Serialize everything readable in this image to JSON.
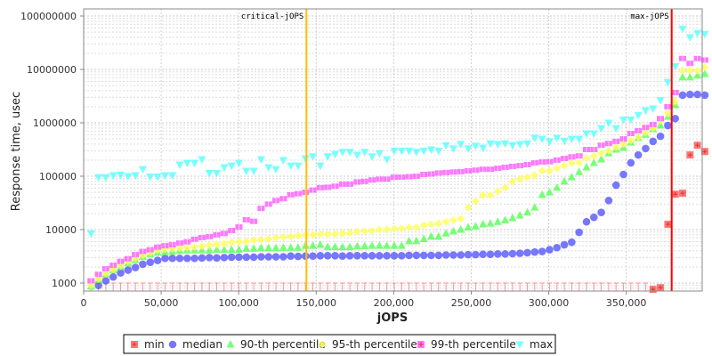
{
  "chart_data": {
    "type": "scatter",
    "title": "",
    "xlabel": "jOPS",
    "ylabel": "Response time, usec",
    "xlim": [
      0,
      399000
    ],
    "ylim": [
      708,
      136000000
    ],
    "yscale": "log",
    "grid": true,
    "legend_position": "bottom",
    "x_ticks": [
      0,
      50000,
      100000,
      150000,
      200000,
      250000,
      300000,
      350000
    ],
    "x_tick_labels": [
      "0",
      "50,000",
      "100,000",
      "150,000",
      "200,000",
      "250,000",
      "300,000",
      "350,000"
    ],
    "y_ticks": [
      1000,
      10000,
      100000,
      1000000,
      10000000,
      100000000
    ],
    "y_tick_labels": [
      "1000",
      "10000",
      "100000",
      "1000000",
      "10000000",
      "100000000"
    ],
    "x_step": 4770,
    "x_count": 84,
    "annotations": [
      {
        "label": "critical-jOPS",
        "x": 143700,
        "color": "#ffc000"
      },
      {
        "label": "max-jOPS",
        "x": 379300,
        "color": "#ff0000"
      }
    ],
    "series": [
      {
        "name": "min",
        "color": "#ff5555",
        "shape": "square",
        "values": [
          null,
          500,
          500,
          500,
          500,
          500,
          500,
          500,
          500,
          500,
          500,
          500,
          500,
          500,
          500,
          500,
          500,
          500,
          500,
          500,
          500,
          500,
          500,
          500,
          500,
          500,
          500,
          500,
          500,
          500,
          500,
          500,
          500,
          500,
          500,
          500,
          500,
          500,
          500,
          500,
          500,
          500,
          500,
          500,
          500,
          500,
          500,
          500,
          500,
          500,
          500,
          500,
          500,
          500,
          500,
          500,
          500,
          500,
          500,
          500,
          500,
          500,
          500,
          500,
          500,
          500,
          500,
          500,
          500,
          500,
          500,
          500,
          500,
          500,
          500,
          500,
          760,
          820,
          12600,
          46000,
          48000,
          250000,
          380000,
          290000
        ]
      },
      {
        "name": "median",
        "color": "#5555ff",
        "shape": "circle",
        "values": [
          700,
          900,
          1100,
          1300,
          1550,
          1750,
          1950,
          2250,
          2450,
          2650,
          2900,
          2900,
          2900,
          2900,
          2900,
          2950,
          3000,
          2950,
          3000,
          3050,
          3050,
          3050,
          3050,
          3100,
          3100,
          3100,
          3100,
          3200,
          3150,
          3200,
          3200,
          3250,
          3250,
          3250,
          3200,
          3250,
          3250,
          3250,
          3250,
          3250,
          3250,
          3250,
          3250,
          3300,
          3300,
          3300,
          3300,
          3300,
          3350,
          3350,
          3350,
          3400,
          3400,
          3450,
          3450,
          3500,
          3500,
          3550,
          3600,
          3700,
          3800,
          3900,
          4200,
          4600,
          5200,
          5800,
          8900,
          14000,
          17000,
          21000,
          35000,
          68000,
          108000,
          178000,
          250000,
          330000,
          450000,
          560000,
          890000,
          1200000,
          3300000,
          3400000,
          3400000,
          3300000
        ]
      },
      {
        "name": "90-th percentile",
        "color": "#55ff55",
        "shape": "triangle-up",
        "values": [
          860,
          1150,
          1450,
          1750,
          2000,
          2350,
          2700,
          3100,
          3500,
          3700,
          3800,
          3900,
          4000,
          4100,
          4100,
          4100,
          4100,
          4200,
          4200,
          4200,
          4200,
          4400,
          4400,
          4500,
          4500,
          4500,
          4600,
          4600,
          4600,
          5000,
          5000,
          5200,
          4700,
          4700,
          4700,
          4700,
          4900,
          4900,
          5000,
          5000,
          5000,
          5000,
          5000,
          6100,
          6100,
          6700,
          7400,
          7400,
          8500,
          9300,
          10000,
          11000,
          11500,
          12600,
          13000,
          14000,
          15000,
          16500,
          18500,
          21000,
          26000,
          45000,
          50000,
          61000,
          80000,
          96000,
          120000,
          147000,
          178000,
          207000,
          270000,
          316000,
          340000,
          430000,
          520000,
          600000,
          760000,
          890000,
          1300000,
          2150000,
          7100000,
          7100000,
          7700000,
          8200000
        ]
      },
      {
        "name": "95-th percentile",
        "color": "#ffff55",
        "shape": "diamond",
        "values": [
          900,
          1200,
          1500,
          1800,
          2100,
          2500,
          2900,
          3300,
          3700,
          4100,
          4300,
          4400,
          4500,
          4600,
          4700,
          4900,
          5100,
          5300,
          5500,
          5800,
          5900,
          6000,
          6300,
          6500,
          6700,
          7000,
          7300,
          7400,
          7700,
          7900,
          8000,
          8200,
          8200,
          8300,
          8500,
          8700,
          9300,
          9300,
          9500,
          10000,
          10000,
          10400,
          10500,
          11000,
          11000,
          12000,
          12600,
          13000,
          14000,
          15000,
          16000,
          26000,
          34000,
          44000,
          44000,
          52000,
          61000,
          79000,
          89000,
          96000,
          104000,
          126000,
          126000,
          141000,
          158000,
          178000,
          178000,
          215000,
          240000,
          270000,
          300000,
          350000,
          400000,
          460000,
          540000,
          650000,
          790000,
          1100000,
          1500000,
          2500000,
          9500000,
          9500000,
          9500000,
          11000000
        ]
      },
      {
        "name": "99-th percentile",
        "color": "#ff55ff",
        "shape": "square-plus",
        "values": [
          1100,
          1450,
          1850,
          2150,
          2550,
          2850,
          3400,
          3900,
          4200,
          4700,
          5000,
          5200,
          5600,
          5900,
          6600,
          7100,
          7400,
          8000,
          8500,
          9600,
          11200,
          15300,
          14300,
          25000,
          30000,
          35000,
          38000,
          45000,
          47000,
          50000,
          55000,
          61000,
          62000,
          65000,
          71000,
          71000,
          78000,
          80000,
          85000,
          88000,
          88000,
          96000,
          96000,
          98000,
          100000,
          108000,
          110000,
          115000,
          117000,
          120000,
          122000,
          126000,
          130000,
          135000,
          135000,
          141000,
          147000,
          153000,
          158000,
          165000,
          178000,
          185000,
          187000,
          200000,
          215000,
          230000,
          240000,
          316000,
          316000,
          380000,
          410000,
          450000,
          500000,
          630000,
          710000,
          820000,
          930000,
          1200000,
          2000000,
          3700000,
          16000000,
          13000000,
          16000000,
          15000000
        ]
      },
      {
        "name": "max",
        "color": "#55ffff",
        "shape": "triangle-down",
        "values": [
          8500,
          96000,
          96000,
          104000,
          106000,
          100000,
          104000,
          135000,
          98000,
          98000,
          104000,
          104000,
          165000,
          178000,
          178000,
          207000,
          115000,
          115000,
          147000,
          158000,
          178000,
          126000,
          126000,
          207000,
          147000,
          135000,
          200000,
          158000,
          158000,
          215000,
          235000,
          158000,
          235000,
          260000,
          285000,
          285000,
          250000,
          285000,
          235000,
          270000,
          207000,
          300000,
          300000,
          300000,
          285000,
          300000,
          316000,
          300000,
          380000,
          330000,
          400000,
          330000,
          370000,
          340000,
          410000,
          400000,
          410000,
          380000,
          400000,
          410000,
          520000,
          500000,
          450000,
          520000,
          460000,
          500000,
          500000,
          630000,
          630000,
          790000,
          1000000,
          790000,
          1150000,
          1150000,
          1400000,
          1700000,
          1850000,
          2650000,
          5800000,
          11500000,
          58000000,
          40000000,
          48000000,
          46000000
        ]
      }
    ]
  }
}
